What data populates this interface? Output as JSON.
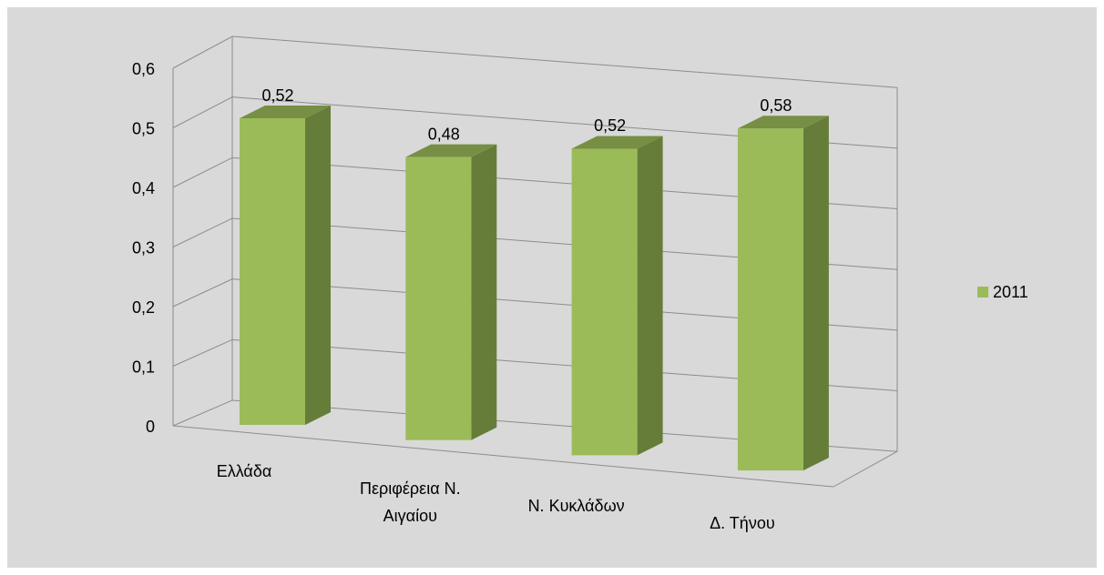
{
  "chart_data": {
    "type": "bar3d",
    "categories": [
      "Ελλάδα",
      "Περιφέρεια Ν. Αιγαίου",
      "Ν. Κυκλάδων",
      "Δ. Τήνου"
    ],
    "series": [
      {
        "name": "2011",
        "color": "#9bbb59",
        "values": [
          0.52,
          0.48,
          0.52,
          0.58
        ],
        "value_labels": [
          "0,52",
          "0,48",
          "0,52",
          "0,58"
        ]
      }
    ],
    "ylim": [
      0,
      0.6
    ],
    "yticks": [
      0,
      {
        "value": 0.1,
        "label": "0,1"
      },
      {
        "value": 0.2,
        "label": "0,2"
      },
      {
        "value": 0.3,
        "label": "0,3"
      },
      {
        "value": 0.4,
        "label": "0,4"
      },
      {
        "value": 0.5,
        "label": "0,5"
      },
      {
        "value": 0.6,
        "label": "0,6"
      }
    ],
    "grid": true,
    "legend": "right"
  }
}
